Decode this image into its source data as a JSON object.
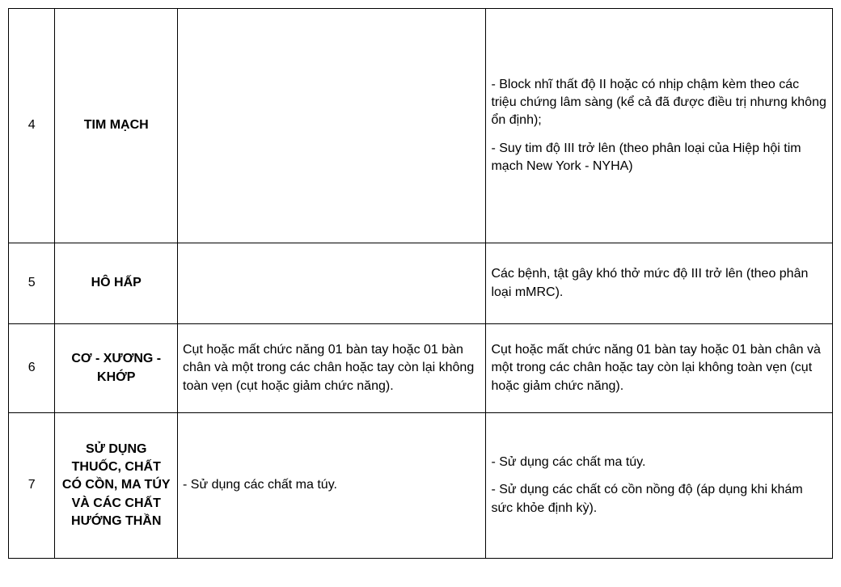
{
  "table": {
    "rows": [
      {
        "num": "4",
        "category": "TIM MẠCH",
        "desc1": "",
        "desc2_parts": [
          "- Block nhĩ thất độ II hoặc có nhịp chậm kèm theo các triệu chứng lâm sàng (kể cả đã được điều trị nhưng không ổn định);",
          "- Suy tim độ III trở lên (theo phân loại của Hiệp hội tim mạch New York - NYHA)"
        ],
        "height_class": "row-tall"
      },
      {
        "num": "5",
        "category": "HÔ HẤP",
        "desc1": "",
        "desc2_parts": [
          "Các bệnh, tật gây khó thở mức độ III trở lên (theo phân loại mMRC)."
        ],
        "height_class": "row-med"
      },
      {
        "num": "6",
        "category": "CƠ - XƯƠNG - KHỚP",
        "desc1": "Cụt hoặc mất chức năng 01 bàn tay hoặc 01 bàn chân và một trong các chân hoặc tay còn lại không toàn vẹn (cụt hoặc giảm chức năng).",
        "desc2_parts": [
          "Cụt hoặc mất chức năng 01 bàn tay hoặc 01 bàn chân và một trong các chân hoặc tay còn lại không toàn vẹn (cụt hoặc giảm chức năng)."
        ],
        "height_class": "row-norm"
      },
      {
        "num": "7",
        "category": "SỬ DỤNG THUỐC, CHẤT CÓ CỒN, MA TÚY VÀ CÁC CHẤT HƯỚNG THẦN",
        "desc1": "- Sử dụng các chất ma túy.",
        "desc2_parts": [
          "- Sử dụng các chất ma túy.",
          "- Sử dụng các chất có cồn nồng độ (áp dụng khi khám sức khỏe định kỳ)."
        ],
        "height_class": "row-last"
      }
    ]
  }
}
